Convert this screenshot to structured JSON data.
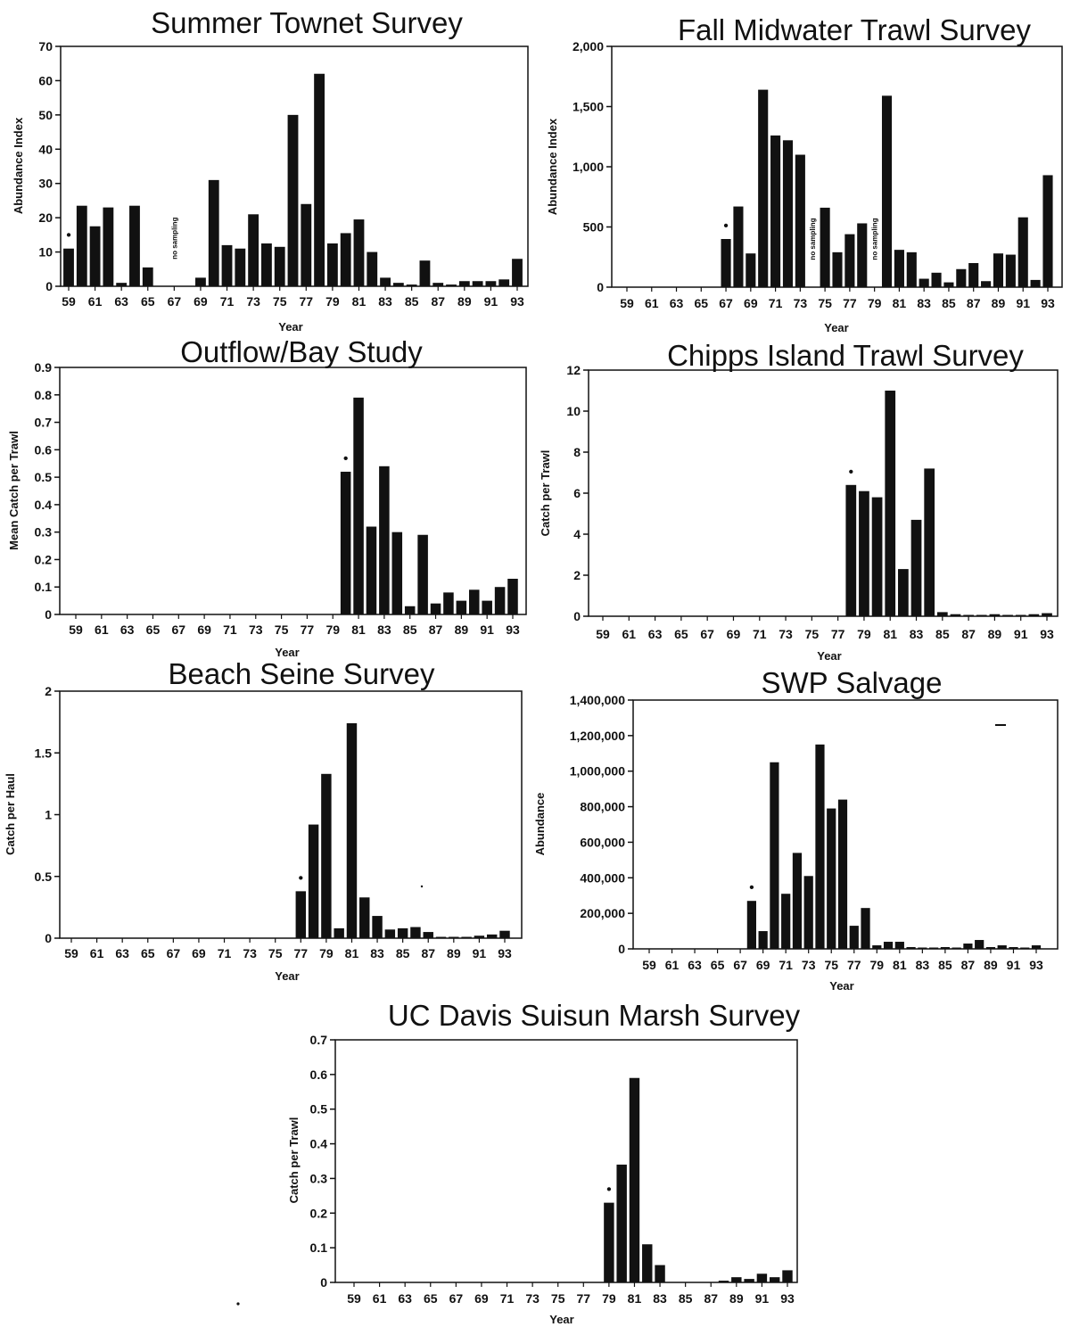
{
  "chart_data": [
    {
      "id": "summer",
      "type": "bar",
      "title": "Summer Townet Survey",
      "xlabel": "Year",
      "ylabel": "Abundance Index",
      "ylim": [
        0,
        70
      ],
      "yticks": [
        "0",
        "10",
        "20",
        "30",
        "40",
        "50",
        "60",
        "70"
      ],
      "xticks": [
        "59",
        "61",
        "63",
        "65",
        "67",
        "69",
        "71",
        "73",
        "75",
        "77",
        "79",
        "81",
        "83",
        "85",
        "87",
        "89",
        "91",
        "93"
      ],
      "x": [
        59,
        60,
        61,
        62,
        63,
        64,
        65,
        66,
        67,
        68,
        69,
        70,
        71,
        72,
        73,
        74,
        75,
        76,
        77,
        78,
        79,
        80,
        81,
        82,
        83,
        84,
        85,
        86,
        87,
        88,
        89,
        90,
        91,
        92,
        93
      ],
      "values": [
        11,
        23.5,
        17.5,
        23,
        1,
        23.5,
        5.5,
        0,
        0,
        0,
        2.5,
        31,
        12,
        11,
        21,
        12.5,
        11.5,
        50,
        24,
        62,
        12.5,
        15.5,
        19.5,
        10,
        2.5,
        1,
        0.5,
        7.5,
        1,
        0.5,
        1.5,
        1.5,
        1.5,
        2,
        8
      ],
      "annotations": [
        {
          "text": "no sampling",
          "x": 67
        }
      ],
      "markers": [
        {
          "text": "•",
          "x": 59
        }
      ]
    },
    {
      "id": "fall",
      "type": "bar",
      "title": "Fall Midwater Trawl Survey",
      "xlabel": "Year",
      "ylabel": "Abundance Index",
      "ylim": [
        0,
        2000
      ],
      "yticks": [
        "0",
        "500",
        "1,000",
        "1,500",
        "2,000"
      ],
      "xticks": [
        "59",
        "61",
        "63",
        "65",
        "67",
        "69",
        "71",
        "73",
        "75",
        "77",
        "79",
        "81",
        "83",
        "85",
        "87",
        "89",
        "91",
        "93"
      ],
      "x": [
        59,
        60,
        61,
        62,
        63,
        64,
        65,
        66,
        67,
        68,
        69,
        70,
        71,
        72,
        73,
        74,
        75,
        76,
        77,
        78,
        79,
        80,
        81,
        82,
        83,
        84,
        85,
        86,
        87,
        88,
        89,
        90,
        91,
        92,
        93
      ],
      "values": [
        0,
        0,
        0,
        0,
        0,
        0,
        0,
        0,
        400,
        670,
        280,
        1640,
        1260,
        1220,
        1100,
        0,
        660,
        290,
        440,
        530,
        0,
        1590,
        310,
        290,
        70,
        120,
        40,
        150,
        200,
        50,
        280,
        270,
        580,
        60,
        930
      ],
      "annotations": [
        {
          "text": "no sampling",
          "x": 74
        },
        {
          "text": "no sampling",
          "x": 79
        }
      ],
      "markers": [
        {
          "text": "•",
          "x": 67
        }
      ]
    },
    {
      "id": "outflow",
      "type": "bar",
      "title": "Outflow/Bay Study",
      "xlabel": "Year",
      "ylabel": "Mean Catch per Trawl",
      "ylim": [
        0,
        0.9
      ],
      "yticks": [
        "0",
        "0.1",
        "0.2",
        "0.3",
        "0.4",
        "0.5",
        "0.6",
        "0.7",
        "0.8",
        "0.9"
      ],
      "xticks": [
        "59",
        "61",
        "63",
        "65",
        "67",
        "69",
        "71",
        "73",
        "75",
        "77",
        "79",
        "81",
        "83",
        "85",
        "87",
        "89",
        "91",
        "93"
      ],
      "x": [
        59,
        60,
        61,
        62,
        63,
        64,
        65,
        66,
        67,
        68,
        69,
        70,
        71,
        72,
        73,
        74,
        75,
        76,
        77,
        78,
        79,
        80,
        81,
        82,
        83,
        84,
        85,
        86,
        87,
        88,
        89,
        90,
        91,
        92,
        93
      ],
      "values": [
        0,
        0,
        0,
        0,
        0,
        0,
        0,
        0,
        0,
        0,
        0,
        0,
        0,
        0,
        0,
        0,
        0,
        0,
        0,
        0,
        0,
        0.52,
        0.79,
        0.32,
        0.54,
        0.3,
        0.03,
        0.29,
        0.04,
        0.08,
        0.05,
        0.09,
        0.05,
        0.1,
        0.13
      ],
      "annotations": [],
      "markers": [
        {
          "text": "•",
          "x": 80
        }
      ]
    },
    {
      "id": "chipps",
      "type": "bar",
      "title": "Chipps Island Trawl Survey",
      "xlabel": "Year",
      "ylabel": "Catch per Trawl",
      "ylim": [
        0,
        12
      ],
      "yticks": [
        "0",
        "2",
        "4",
        "6",
        "8",
        "10",
        "12"
      ],
      "xticks": [
        "59",
        "61",
        "63",
        "65",
        "67",
        "69",
        "71",
        "73",
        "75",
        "77",
        "79",
        "81",
        "83",
        "85",
        "87",
        "89",
        "91",
        "93"
      ],
      "x": [
        59,
        60,
        61,
        62,
        63,
        64,
        65,
        66,
        67,
        68,
        69,
        70,
        71,
        72,
        73,
        74,
        75,
        76,
        77,
        78,
        79,
        80,
        81,
        82,
        83,
        84,
        85,
        86,
        87,
        88,
        89,
        90,
        91,
        92,
        93
      ],
      "values": [
        0,
        0,
        0,
        0,
        0,
        0,
        0,
        0,
        0,
        0,
        0,
        0,
        0,
        0,
        0,
        0,
        0,
        0,
        0,
        6.4,
        6.1,
        5.8,
        11,
        2.3,
        4.7,
        7.2,
        0.2,
        0.1,
        0.05,
        0.05,
        0.1,
        0.05,
        0.05,
        0.1,
        0.15
      ],
      "annotations": [],
      "markers": [
        {
          "text": "•",
          "x": 78
        }
      ]
    },
    {
      "id": "beach",
      "type": "bar",
      "title": "Beach Seine Survey",
      "xlabel": "Year",
      "ylabel": "Catch per Haul",
      "ylim": [
        0,
        2
      ],
      "yticks": [
        "0",
        "0.5",
        "1",
        "1.5",
        "2"
      ],
      "xticks": [
        "59",
        "61",
        "63",
        "65",
        "67",
        "69",
        "71",
        "73",
        "75",
        "77",
        "79",
        "81",
        "83",
        "85",
        "87",
        "89",
        "91",
        "93"
      ],
      "x": [
        59,
        60,
        61,
        62,
        63,
        64,
        65,
        66,
        67,
        68,
        69,
        70,
        71,
        72,
        73,
        74,
        75,
        76,
        77,
        78,
        79,
        80,
        81,
        82,
        83,
        84,
        85,
        86,
        87,
        88,
        89,
        90,
        91,
        92,
        93
      ],
      "values": [
        0,
        0,
        0,
        0,
        0,
        0,
        0,
        0,
        0,
        0,
        0,
        0,
        0,
        0,
        0,
        0,
        0,
        0,
        0.38,
        0.92,
        1.33,
        0.08,
        1.74,
        0.33,
        0.18,
        0.07,
        0.08,
        0.09,
        0.05,
        0.01,
        0.01,
        0.01,
        0.02,
        0.03,
        0.06
      ],
      "annotations": [],
      "markers": [
        {
          "text": "•",
          "x": 77
        }
      ]
    },
    {
      "id": "swp",
      "type": "bar",
      "title": "SWP Salvage",
      "xlabel": "Year",
      "ylabel": "Abundance",
      "ylim": [
        0,
        1400000
      ],
      "yticks": [
        "0",
        "200,000",
        "400,000",
        "600,000",
        "800,000",
        "1,000,000",
        "1,200,000",
        "1,400,000"
      ],
      "xticks": [
        "59",
        "61",
        "63",
        "65",
        "67",
        "69",
        "71",
        "73",
        "75",
        "77",
        "79",
        "81",
        "83",
        "85",
        "87",
        "89",
        "91",
        "93"
      ],
      "x": [
        59,
        60,
        61,
        62,
        63,
        64,
        65,
        66,
        67,
        68,
        69,
        70,
        71,
        72,
        73,
        74,
        75,
        76,
        77,
        78,
        79,
        80,
        81,
        82,
        83,
        84,
        85,
        86,
        87,
        88,
        89,
        90,
        91,
        92,
        93
      ],
      "values": [
        0,
        0,
        0,
        0,
        0,
        0,
        0,
        0,
        0,
        270000,
        100000,
        1050000,
        310000,
        540000,
        410000,
        1150000,
        790000,
        840000,
        130000,
        230000,
        20000,
        40000,
        40000,
        10000,
        5000,
        5000,
        10000,
        5000,
        30000,
        50000,
        10000,
        20000,
        10000,
        5000,
        20000
      ],
      "annotations": [],
      "markers": [
        {
          "text": "•",
          "x": 68
        }
      ]
    },
    {
      "id": "ucdavis",
      "type": "bar",
      "title": "UC Davis Suisun Marsh Survey",
      "xlabel": "Year",
      "ylabel": "Catch per Trawl",
      "ylim": [
        0,
        0.7
      ],
      "yticks": [
        "0",
        "0.1",
        "0.2",
        "0.3",
        "0.4",
        "0.5",
        "0.6",
        "0.7"
      ],
      "xticks": [
        "59",
        "61",
        "63",
        "65",
        "67",
        "69",
        "71",
        "73",
        "75",
        "77",
        "79",
        "81",
        "83",
        "85",
        "87",
        "89",
        "91",
        "93"
      ],
      "x": [
        59,
        60,
        61,
        62,
        63,
        64,
        65,
        66,
        67,
        68,
        69,
        70,
        71,
        72,
        73,
        74,
        75,
        76,
        77,
        78,
        79,
        80,
        81,
        82,
        83,
        84,
        85,
        86,
        87,
        88,
        89,
        90,
        91,
        92,
        93
      ],
      "values": [
        0,
        0,
        0,
        0,
        0,
        0,
        0,
        0,
        0,
        0,
        0,
        0,
        0,
        0,
        0,
        0,
        0,
        0,
        0,
        0,
        0.23,
        0.34,
        0.59,
        0.11,
        0.05,
        0,
        0,
        0,
        0,
        0.005,
        0.015,
        0.01,
        0.025,
        0.015,
        0.035
      ],
      "annotations": [],
      "markers": [
        {
          "text": "•",
          "x": 79
        }
      ]
    }
  ],
  "colors": {
    "bar": "#111111",
    "axis": "#111111",
    "background": "#ffffff"
  }
}
